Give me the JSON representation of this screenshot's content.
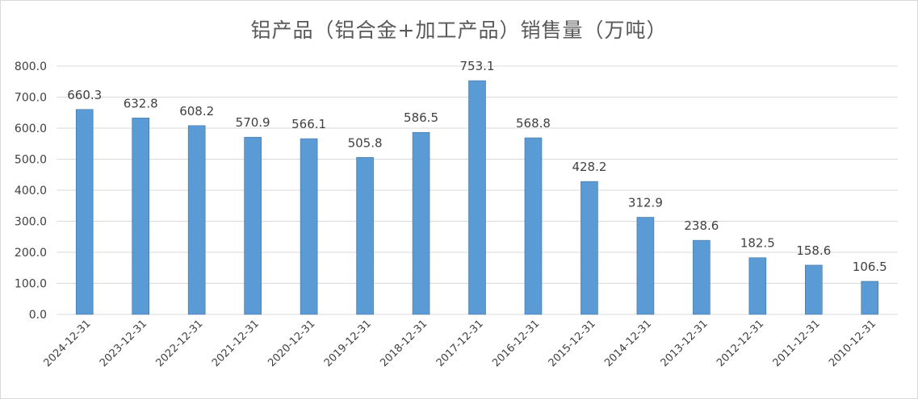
{
  "chart_data": {
    "type": "bar",
    "title": "铝产品（铝合金+加工产品）销售量（万吨）",
    "categories": [
      "2024-12-31",
      "2023-12-31",
      "2022-12-31",
      "2021-12-31",
      "2020-12-31",
      "2019-12-31",
      "2018-12-31",
      "2017-12-31",
      "2016-12-31",
      "2015-12-31",
      "2014-12-31",
      "2013-12-31",
      "2012-12-31",
      "2011-12-31",
      "2010-12-31"
    ],
    "values": [
      660.3,
      632.8,
      608.2,
      570.9,
      566.1,
      505.8,
      586.5,
      753.1,
      568.8,
      428.2,
      312.9,
      238.6,
      182.5,
      158.6,
      106.5
    ],
    "data_labels": [
      "660.3",
      "632.8",
      "608.2",
      "570.9",
      "566.1",
      "505.8",
      "586.5",
      "753.1",
      "568.8",
      "428.2",
      "312.9",
      "238.6",
      "182.5",
      "158.6",
      "106.5"
    ],
    "y_ticks": [
      "0.0",
      "100.0",
      "200.0",
      "300.0",
      "400.0",
      "500.0",
      "600.0",
      "700.0",
      "800.0"
    ],
    "ylim": [
      0,
      800
    ],
    "grid": true,
    "legend": "none",
    "colors": {
      "bar": "#5b9bd5",
      "bar_edge": "#41719c",
      "grid": "#d9d9d9",
      "axis_text": "#404040",
      "label_text": "#404040",
      "title_text": "#595959"
    }
  }
}
